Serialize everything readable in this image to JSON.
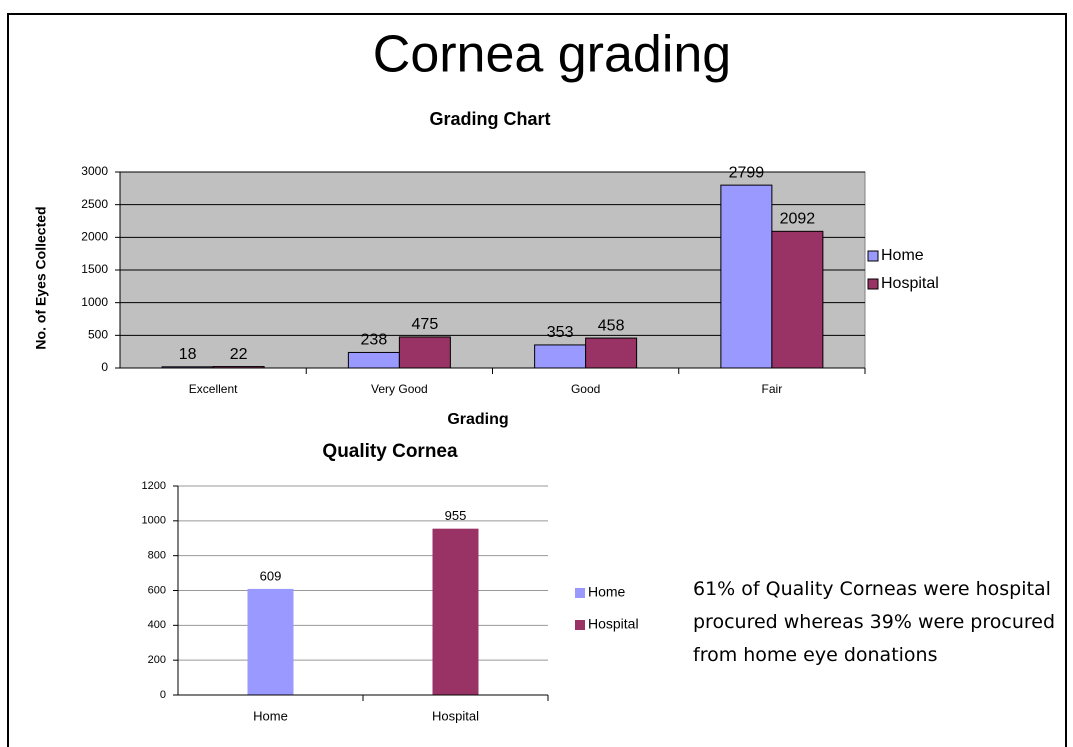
{
  "title": "Cornea grading",
  "note": "61% of Quality Corneas were hospital procured whereas 39% were procured from home eye donations",
  "chart_data": [
    {
      "type": "bar",
      "title": "Grading Chart",
      "xlabel": "Grading",
      "ylabel": "No. of Eyes Collected",
      "categories": [
        "Excellent",
        "Very Good",
        "Good",
        "Fair"
      ],
      "series": [
        {
          "name": "Home",
          "color": "#9999ff",
          "values": [
            18,
            238,
            353,
            2799
          ]
        },
        {
          "name": "Hospital",
          "color": "#993366",
          "values": [
            22,
            475,
            458,
            2092
          ]
        }
      ],
      "ylim": [
        0,
        3000
      ],
      "yticks": [
        0,
        500,
        1000,
        1500,
        2000,
        2500,
        3000
      ],
      "grid": true,
      "plot_background": "#c0c0c0",
      "legend": "right"
    },
    {
      "type": "bar",
      "title": "Quality  Cornea",
      "categories": [
        "Home",
        "Hospital"
      ],
      "values": [
        609,
        955
      ],
      "colors": [
        "#9999ff",
        "#993366"
      ],
      "ylim": [
        0,
        1200
      ],
      "yticks": [
        0,
        200,
        400,
        600,
        800,
        1000,
        1200
      ],
      "grid": true,
      "legend": "right"
    }
  ]
}
